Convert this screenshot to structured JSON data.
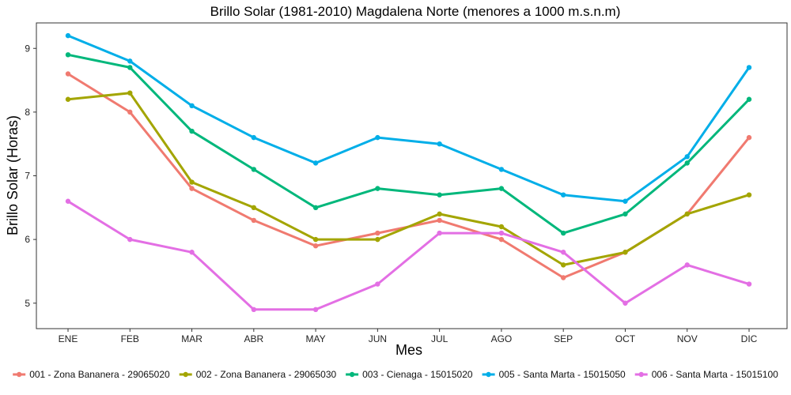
{
  "chart_data": {
    "type": "line",
    "title": "Brillo Solar (1981-2010) Magdalena Norte (menores a 1000 m.s.n.m)",
    "xlabel": "Mes",
    "ylabel": "Brillo Solar (Horas)",
    "categories": [
      "ENE",
      "FEB",
      "MAR",
      "ABR",
      "MAY",
      "JUN",
      "JUL",
      "AGO",
      "SEP",
      "OCT",
      "NOV",
      "DIC"
    ],
    "ylim": [
      4.6,
      9.4
    ],
    "yticks": [
      5,
      6,
      7,
      8,
      9
    ],
    "grid": false,
    "legend_position": "bottom",
    "series": [
      {
        "name": "001 - Zona Bananera - 29065020",
        "color": "#f07a70",
        "values": [
          8.6,
          8.0,
          6.8,
          6.3,
          5.9,
          6.1,
          6.3,
          6.0,
          5.4,
          5.8,
          6.4,
          7.6
        ]
      },
      {
        "name": "002 - Zona Bananera - 29065030",
        "color": "#a3a500",
        "values": [
          8.2,
          8.3,
          6.9,
          6.5,
          6.0,
          6.0,
          6.4,
          6.2,
          5.6,
          5.8,
          6.4,
          6.7
        ]
      },
      {
        "name": "003 - Cienaga - 15015020",
        "color": "#00b77b",
        "values": [
          8.9,
          8.7,
          7.7,
          7.1,
          6.5,
          6.8,
          6.7,
          6.8,
          6.1,
          6.4,
          7.2,
          8.2
        ]
      },
      {
        "name": "005 - Santa Marta - 15015050",
        "color": "#00aee8",
        "values": [
          9.2,
          8.8,
          8.1,
          7.6,
          7.2,
          7.6,
          7.5,
          7.1,
          6.7,
          6.6,
          7.3,
          8.7
        ]
      },
      {
        "name": "006 - Santa Marta - 15015100",
        "color": "#e36fe4",
        "values": [
          6.6,
          6.0,
          5.8,
          4.9,
          4.9,
          5.3,
          6.1,
          6.1,
          5.8,
          5.0,
          5.6,
          5.3
        ]
      }
    ]
  }
}
